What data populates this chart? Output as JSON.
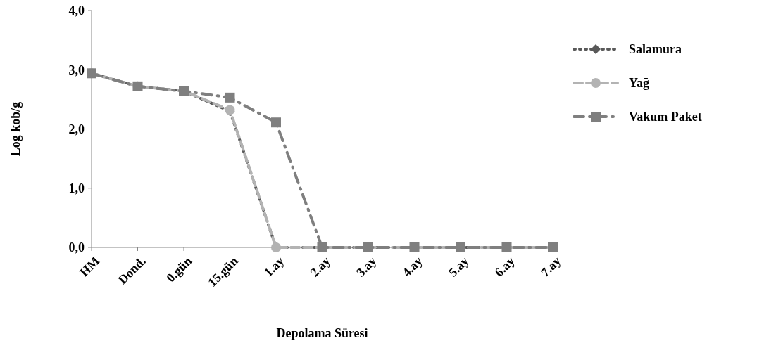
{
  "chart_data": {
    "type": "line",
    "xlabel": "Depolama Süresi",
    "ylabel": "Log kob/g",
    "categories": [
      "HM",
      "Dond.",
      "0.gün",
      "15.gün",
      "1.ay",
      "2.ay",
      "3.ay",
      "4.ay",
      "5.ay",
      "6.ay",
      "7.ay"
    ],
    "ylim": [
      0,
      4
    ],
    "yticks": [
      {
        "value": 0,
        "label": "0,0"
      },
      {
        "value": 1,
        "label": "1,0"
      },
      {
        "value": 2,
        "label": "2,0"
      },
      {
        "value": 3,
        "label": "3,0"
      },
      {
        "value": 4,
        "label": "4,0"
      }
    ],
    "grid": false,
    "legend": "right",
    "series": [
      {
        "name": "Salamura",
        "color": "#595959",
        "marker": "diamond",
        "line_style": "dotted",
        "values": [
          2.94,
          2.72,
          2.64,
          2.3,
          0,
          0,
          0,
          0,
          0,
          0,
          0
        ]
      },
      {
        "name": "Yağ",
        "color": "#b3b3b3",
        "marker": "circle",
        "line_style": "dashed",
        "values": [
          2.94,
          2.72,
          2.64,
          2.32,
          0,
          0,
          0,
          0,
          0,
          0,
          0
        ]
      },
      {
        "name": "Vakum Paket",
        "color": "#7f7f7f",
        "marker": "square",
        "line_style": "dashed",
        "values": [
          2.94,
          2.72,
          2.64,
          2.53,
          2.11,
          0,
          0,
          0,
          0,
          0,
          0
        ]
      }
    ]
  }
}
